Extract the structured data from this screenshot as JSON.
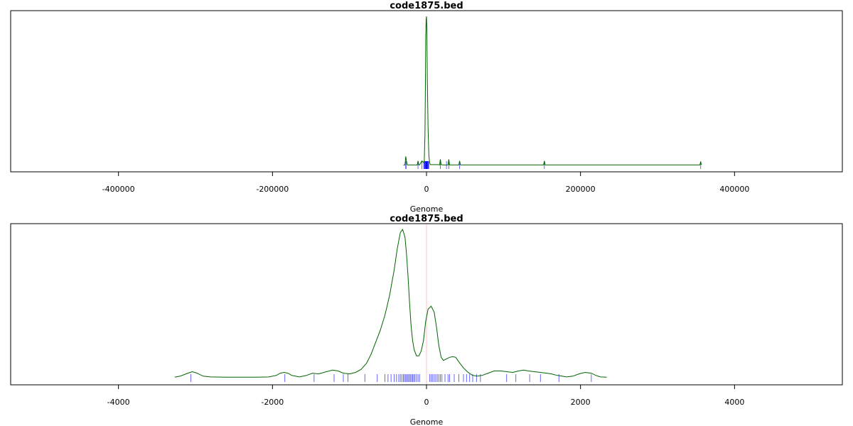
{
  "chart_data": [
    {
      "type": "line",
      "title": "code1875.bed",
      "xlabel": "Genome",
      "ylabel": "",
      "xlim": [
        -540000,
        540000
      ],
      "ylim": [
        0,
        1
      ],
      "xticks": [
        -400000,
        -200000,
        0,
        200000,
        400000
      ],
      "xtick_labels": [
        "-400000",
        "-200000",
        "0",
        "200000",
        "400000"
      ],
      "grid": false,
      "colors": {
        "density": "#006400",
        "rug": "#0000ff",
        "frame": "#000000"
      },
      "density": {
        "x": [
          -30000,
          -28000,
          -27000,
          -26000,
          -25000,
          -20000,
          -12000,
          -11000,
          -10000,
          -9000,
          -6000,
          -4000,
          -3000,
          -2000,
          -1500,
          -1000,
          -500,
          0,
          500,
          1000,
          2000,
          3000,
          4000,
          5000,
          15000,
          17000,
          18000,
          19000,
          21000,
          26000,
          28000,
          29000,
          30000,
          32000,
          40000,
          42000,
          43000,
          44000,
          46000,
          150000,
          152000,
          153000,
          154000,
          156000,
          353000,
          355000,
          356000,
          357000
        ],
        "y": [
          0.004,
          0.004,
          0.06,
          0.03,
          0.004,
          0.004,
          0.004,
          0.03,
          0.004,
          0.004,
          0.03,
          0.02,
          0.02,
          0.2,
          0.5,
          0.85,
          0.97,
          0.99,
          0.9,
          0.6,
          0.25,
          0.07,
          0.02,
          0.005,
          0.005,
          0.004,
          0.04,
          0.005,
          0.004,
          0.004,
          0.004,
          0.04,
          0.004,
          0.004,
          0.004,
          0.004,
          0.03,
          0.004,
          0.004,
          0.004,
          0.004,
          0.03,
          0.004,
          0.004,
          0.004,
          0.004,
          0.025,
          0.004
        ]
      },
      "rug": [
        -27000,
        -26500,
        -11000,
        -6000,
        -3500,
        -3000,
        -2500,
        -2000,
        -1500,
        -1000,
        -800,
        -500,
        -300,
        -100,
        100,
        300,
        500,
        800,
        1000,
        1500,
        2000,
        2500,
        3000,
        18000,
        26000,
        29000,
        43000,
        153000,
        356000
      ]
    },
    {
      "type": "line",
      "title": "code1875.bed",
      "xlabel": "Genome",
      "ylabel": "",
      "xlim": [
        -5400,
        5400
      ],
      "ylim": [
        0,
        1
      ],
      "xticks": [
        -4000,
        -2000,
        0,
        2000,
        4000
      ],
      "xtick_labels": [
        "-4000",
        "-2000",
        "0",
        "2000",
        "4000"
      ],
      "grid": false,
      "reference_line_x": 0,
      "colors": {
        "density": "#006400",
        "rug": "#0000ff",
        "frame": "#000000",
        "reference": "#ffb6c1"
      },
      "density": {
        "x": [
          -3270,
          -3200,
          -3100,
          -3040,
          -2980,
          -2900,
          -2800,
          -2600,
          -2400,
          -2200,
          -2050,
          -1950,
          -1900,
          -1850,
          -1800,
          -1750,
          -1650,
          -1560,
          -1480,
          -1400,
          -1300,
          -1220,
          -1150,
          -1080,
          -1000,
          -920,
          -850,
          -780,
          -720,
          -660,
          -600,
          -540,
          -480,
          -420,
          -380,
          -340,
          -310,
          -280,
          -260,
          -240,
          -220,
          -200,
          -180,
          -160,
          -130,
          -100,
          -70,
          -40,
          -10,
          20,
          60,
          100,
          130,
          160,
          190,
          220,
          260,
          300,
          340,
          380,
          420,
          480,
          540,
          600,
          660,
          720,
          800,
          880,
          960,
          1040,
          1120,
          1200,
          1260,
          1320,
          1400,
          1480,
          1560,
          1620,
          1700,
          1760,
          1820,
          1900,
          1980,
          2060,
          2140,
          2200,
          2260,
          2340
        ],
        "y": [
          0.008,
          0.015,
          0.035,
          0.045,
          0.035,
          0.015,
          0.01,
          0.008,
          0.008,
          0.008,
          0.01,
          0.02,
          0.035,
          0.04,
          0.035,
          0.02,
          0.01,
          0.02,
          0.035,
          0.03,
          0.045,
          0.055,
          0.05,
          0.035,
          0.03,
          0.04,
          0.06,
          0.1,
          0.16,
          0.24,
          0.32,
          0.42,
          0.55,
          0.72,
          0.86,
          0.97,
          0.99,
          0.94,
          0.83,
          0.68,
          0.5,
          0.35,
          0.25,
          0.19,
          0.15,
          0.15,
          0.18,
          0.25,
          0.38,
          0.46,
          0.48,
          0.44,
          0.34,
          0.22,
          0.14,
          0.12,
          0.13,
          0.14,
          0.145,
          0.14,
          0.11,
          0.07,
          0.04,
          0.02,
          0.015,
          0.02,
          0.035,
          0.05,
          0.05,
          0.045,
          0.04,
          0.05,
          0.055,
          0.05,
          0.045,
          0.04,
          0.035,
          0.03,
          0.02,
          0.015,
          0.01,
          0.015,
          0.03,
          0.04,
          0.035,
          0.02,
          0.01,
          0.008
        ]
      },
      "rug": [
        -3060,
        -1840,
        -1460,
        -1200,
        -1080,
        -1020,
        -800,
        -640,
        -540,
        -500,
        -460,
        -420,
        -390,
        -360,
        -340,
        -320,
        -300,
        -285,
        -270,
        -255,
        -240,
        -225,
        -210,
        -195,
        -180,
        -165,
        -150,
        -130,
        -110,
        -90,
        40,
        60,
        80,
        100,
        120,
        140,
        160,
        180,
        200,
        240,
        280,
        300,
        360,
        420,
        480,
        520,
        560,
        600,
        650,
        700,
        1040,
        1160,
        1340,
        1480,
        1720,
        2140
      ]
    }
  ]
}
